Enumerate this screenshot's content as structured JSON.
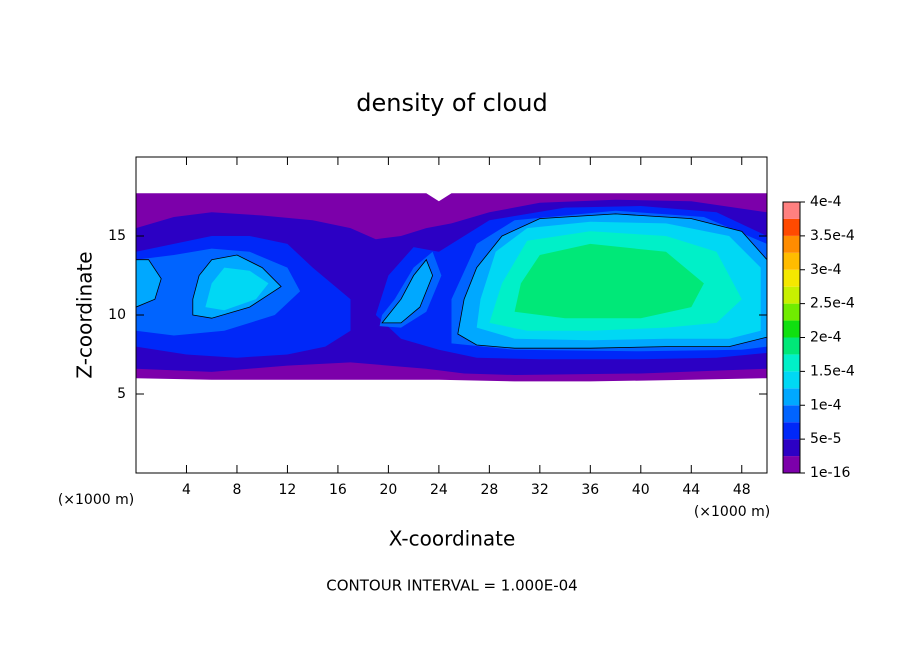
{
  "chart_data": {
    "type": "contour",
    "title": "density of cloud",
    "x_label": "X-coordinate",
    "y_label": "Z-coordinate",
    "x_unit_label": "(×1000 m)",
    "y_unit_label": "(×1000 m)",
    "footer": "CONTOUR INTERVAL = 1.000E-04",
    "xlim": [
      0,
      50
    ],
    "xticks": [
      4,
      8,
      12,
      16,
      20,
      24,
      28,
      32,
      36,
      40,
      44,
      48
    ],
    "ylim": [
      0,
      20
    ],
    "yticks": [
      5,
      10,
      15
    ],
    "contour_line_level": 0.0001,
    "colorbar": {
      "levels": [
        1e-16,
        2.5e-05,
        5e-05,
        7.5e-05,
        0.0001,
        0.000125,
        0.00015,
        0.000175,
        0.0002,
        0.000225,
        0.00025,
        0.000275,
        0.0003,
        0.000325,
        0.00035,
        0.000375,
        0.0004
      ],
      "colors": [
        "#7c00aa",
        "#2c00c4",
        "#0028f8",
        "#0064ff",
        "#00a8ff",
        "#00d8f4",
        "#00f0c8",
        "#00e878",
        "#10e010",
        "#70ec00",
        "#c8f000",
        "#f4e800",
        "#ffbc00",
        "#ff8c00",
        "#ff4a00",
        "#ff1010",
        "#ff8080"
      ],
      "ticks": [
        1e-16,
        {
          "value": 5e-05,
          "label": "5e-5"
        },
        {
          "value": 0.0001,
          "label": "1e-4"
        },
        {
          "value": 0.00015,
          "label": "1.5e-4"
        },
        {
          "value": 0.0002,
          "label": "2e-4"
        },
        {
          "value": 0.00025,
          "label": "2.5e-4"
        },
        {
          "value": 0.0003,
          "label": "3e-4"
        },
        {
          "value": 0.00035,
          "label": "3.5e-4"
        },
        {
          "value": 0.0004,
          "label": "4e-4"
        }
      ]
    },
    "regions": [
      {
        "value": 1e-16,
        "x": [
          0,
          23,
          24,
          25,
          50,
          50,
          44,
          36,
          30,
          24,
          18,
          12,
          6,
          0
        ],
        "z": [
          17.7,
          17.7,
          17.2,
          17.7,
          17.7,
          6,
          5.9,
          5.8,
          5.8,
          5.9,
          5.9,
          5.9,
          5.9,
          6
        ]
      },
      {
        "value": 2.5e-05,
        "x": [
          0,
          6,
          12,
          17,
          20,
          23,
          26,
          30,
          40,
          50,
          50,
          44,
          38,
          32,
          28,
          25,
          23,
          21,
          19,
          17,
          14,
          10,
          6,
          3,
          0
        ],
        "z": [
          6.6,
          6.4,
          6.8,
          7,
          6.8,
          6.6,
          6.3,
          6.2,
          6.3,
          6.6,
          16.5,
          17.2,
          17.3,
          17.1,
          16.5,
          15.8,
          15.5,
          15,
          14.8,
          15.5,
          16,
          16.3,
          16.5,
          16.2,
          15.5
        ]
      },
      {
        "value": 5e-05,
        "x": [
          0,
          4,
          8,
          12,
          15,
          17,
          17,
          14,
          12,
          9,
          6,
          3,
          0
        ],
        "z": [
          8,
          7.5,
          7.3,
          7.5,
          8,
          9,
          11,
          13,
          14.5,
          15,
          15,
          14.5,
          14
        ]
      },
      {
        "value": 5e-05,
        "x": [
          21,
          24,
          27,
          32,
          40,
          46,
          50,
          50,
          46,
          40,
          34,
          28,
          25,
          24,
          22,
          20,
          19
        ],
        "z": [
          8.5,
          7.8,
          7.3,
          7.2,
          7.2,
          7.3,
          7.6,
          15,
          16.5,
          16.9,
          16.8,
          16,
          14.5,
          14,
          14.3,
          12.5,
          10
        ]
      },
      {
        "value": 7.5e-05,
        "x": [
          0,
          3,
          7,
          11,
          13,
          12,
          9,
          6,
          3,
          0
        ],
        "z": [
          9,
          8.7,
          9,
          10,
          11.5,
          13,
          14,
          14.2,
          13.8,
          13.5
        ]
      },
      {
        "value": 7.5e-05,
        "x": [
          19.3,
          21,
          23,
          24.2,
          23.5,
          22,
          20.5,
          19.5
        ],
        "z": [
          9.3,
          9.2,
          10.2,
          12.5,
          14,
          13,
          11,
          10
        ]
      },
      {
        "value": 7.5e-05,
        "x": [
          25,
          30,
          40,
          48,
          50,
          50,
          45,
          38,
          30,
          27,
          25
        ],
        "z": [
          8.2,
          7.8,
          7.7,
          7.8,
          8,
          14.5,
          16.2,
          16.6,
          16,
          14.5,
          11
        ]
      },
      {
        "value": 0.0001,
        "x": [
          25.5,
          27,
          30,
          36,
          42,
          47,
          50,
          50,
          48,
          44,
          38,
          32,
          29,
          27,
          26
        ],
        "z": [
          8.8,
          8.1,
          7.9,
          7.9,
          8,
          8,
          8.6,
          13.5,
          15.3,
          16.1,
          16.4,
          16.1,
          15,
          13,
          11
        ]
      },
      {
        "value": 0.0001,
        "x": [
          4.5,
          6,
          9,
          11.5,
          10,
          8,
          6,
          5,
          4.5
        ],
        "z": [
          10,
          9.8,
          10.5,
          11.8,
          13,
          13.8,
          13.5,
          12.5,
          11
        ]
      },
      {
        "value": 0.0001,
        "x": [
          0,
          1.5,
          2,
          1,
          0
        ],
        "z": [
          10.5,
          11,
          12.3,
          13.5,
          13.5
        ]
      },
      {
        "value": 0.0001,
        "x": [
          19.5,
          21,
          22.5,
          23.5,
          23,
          22,
          21,
          20
        ],
        "z": [
          9.5,
          9.5,
          10.5,
          12.5,
          13.5,
          12.5,
          11,
          10
        ]
      },
      {
        "value": 0.000125,
        "x": [
          27,
          30,
          36,
          42,
          47,
          49.5,
          49.5,
          47,
          42,
          36,
          31,
          28.5,
          27.3
        ],
        "z": [
          9.2,
          8.5,
          8.4,
          8.5,
          8.5,
          9,
          13,
          15,
          15.8,
          15.9,
          15.5,
          14,
          11
        ]
      },
      {
        "value": 0.000125,
        "x": [
          5.5,
          7,
          9.5,
          10.5,
          9,
          7,
          6
        ],
        "z": [
          10.5,
          10.3,
          11,
          12,
          12.8,
          13,
          12
        ]
      },
      {
        "value": 0.00015,
        "x": [
          28,
          31,
          36,
          42,
          46,
          48,
          46,
          42,
          36,
          31,
          29
        ],
        "z": [
          9.5,
          9,
          9,
          9.2,
          9.5,
          11,
          14,
          15,
          15.3,
          14.7,
          12
        ]
      },
      {
        "value": 0.000175,
        "x": [
          30,
          34,
          40,
          44,
          45,
          42,
          36,
          32,
          30.5
        ],
        "z": [
          10.2,
          9.8,
          9.8,
          10.5,
          12,
          14,
          14.5,
          13.8,
          12
        ]
      }
    ]
  }
}
